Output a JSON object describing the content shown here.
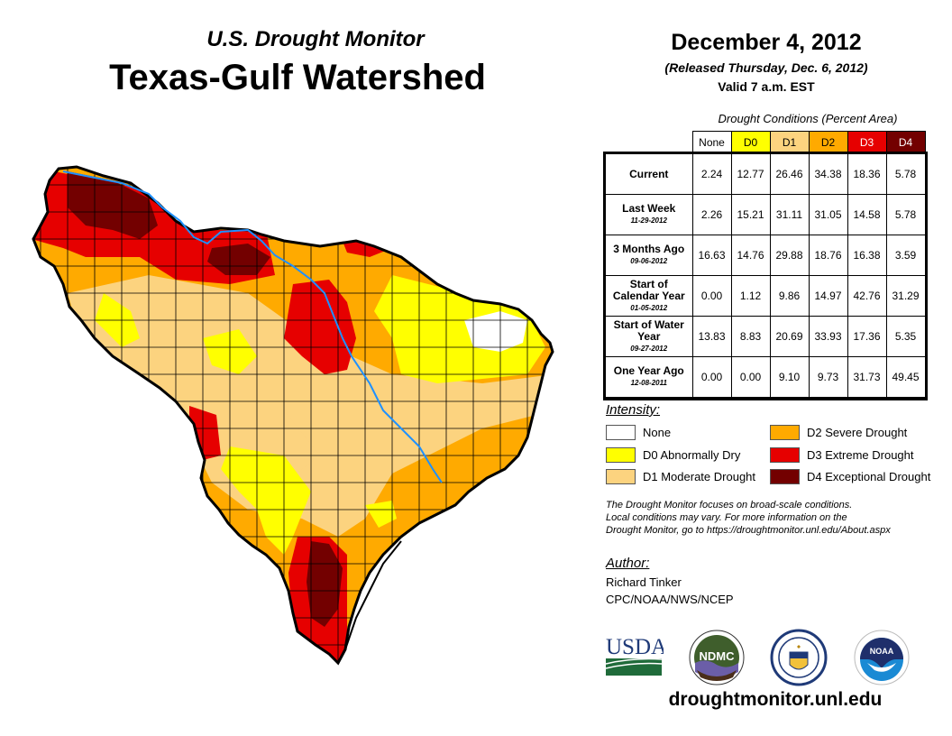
{
  "header": {
    "subtitle": "U.S. Drought Monitor",
    "title": "Texas-Gulf Watershed",
    "date": "December 4, 2012",
    "released": "(Released Thursday, Dec. 6, 2012)",
    "valid": "Valid 7 a.m. EST"
  },
  "table": {
    "caption": "Drought Conditions (Percent Area)",
    "columns": [
      {
        "label": "None",
        "color": "#ffffff",
        "text_color": "#000000"
      },
      {
        "label": "D0",
        "color": "#ffff00",
        "text_color": "#000000"
      },
      {
        "label": "D1",
        "color": "#fcd37f",
        "text_color": "#000000"
      },
      {
        "label": "D2",
        "color": "#ffaa00",
        "text_color": "#000000"
      },
      {
        "label": "D3",
        "color": "#e60000",
        "text_color": "#ffffff"
      },
      {
        "label": "D4",
        "color": "#730000",
        "text_color": "#ffffff"
      }
    ],
    "rows": [
      {
        "label": "Current",
        "date": "",
        "values": [
          "2.24",
          "12.77",
          "26.46",
          "34.38",
          "18.36",
          "5.78"
        ]
      },
      {
        "label": "Last Week",
        "date": "11-29-2012",
        "values": [
          "2.26",
          "15.21",
          "31.11",
          "31.05",
          "14.58",
          "5.78"
        ]
      },
      {
        "label": "3 Months Ago",
        "date": "09-06-2012",
        "values": [
          "16.63",
          "14.76",
          "29.88",
          "18.76",
          "16.38",
          "3.59"
        ]
      },
      {
        "label": "Start of Calendar Year",
        "date": "01-05-2012",
        "values": [
          "0.00",
          "1.12",
          "9.86",
          "14.97",
          "42.76",
          "31.29"
        ]
      },
      {
        "label": "Start of Water Year",
        "date": "09-27-2012",
        "values": [
          "13.83",
          "8.83",
          "20.69",
          "33.93",
          "17.36",
          "5.35"
        ]
      },
      {
        "label": "One Year Ago",
        "date": "12-08-2011",
        "values": [
          "0.00",
          "0.00",
          "9.10",
          "9.73",
          "31.73",
          "49.45"
        ]
      }
    ]
  },
  "legend": {
    "title": "Intensity:",
    "items": [
      {
        "label": "None",
        "color": "#ffffff"
      },
      {
        "label": "D0 Abnormally Dry",
        "color": "#ffff00"
      },
      {
        "label": "D1 Moderate Drought",
        "color": "#fcd37f"
      },
      {
        "label": "D2 Severe Drought",
        "color": "#ffaa00"
      },
      {
        "label": "D3 Extreme Drought",
        "color": "#e60000"
      },
      {
        "label": "D4 Exceptional Drought",
        "color": "#730000"
      }
    ]
  },
  "note": {
    "line1": "The Drought Monitor focuses on broad-scale conditions.",
    "line2": "Local conditions may vary. For more information on the",
    "line3": "Drought Monitor, go to https://droughtmonitor.unl.edu/About.aspx"
  },
  "author": {
    "title": "Author:",
    "name": "Richard Tinker",
    "org": "CPC/NOAA/NWS/NCEP"
  },
  "logos": {
    "usda": "USDA",
    "ndmc": "NDMC",
    "noaa": "NOAA"
  },
  "website": "droughtmonitor.unl.edu",
  "map": {
    "region": "Texas-Gulf Watershed",
    "river_color": "#1e90ff"
  }
}
